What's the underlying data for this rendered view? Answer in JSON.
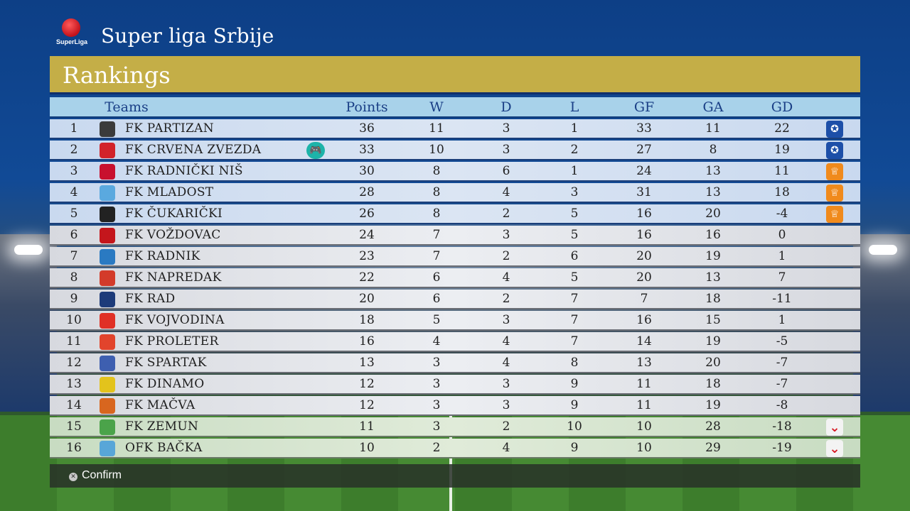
{
  "header": {
    "league_name": "Super liga Srbije",
    "logo_text": "SuperLiga"
  },
  "panel": {
    "title": "Rankings"
  },
  "columns": {
    "teams": "Teams",
    "points": "Points",
    "w": "W",
    "d": "D",
    "l": "L",
    "gf": "GF",
    "ga": "GA",
    "gd": "GD"
  },
  "rows": [
    {
      "pos": "1",
      "team": "FK PARTIZAN",
      "points": "36",
      "w": "11",
      "d": "3",
      "l": "1",
      "gf": "33",
      "ga": "11",
      "gd": "22",
      "badge": "champions-league-icon",
      "crest_color": "#3b3b3b"
    },
    {
      "pos": "2",
      "team": "FK CRVENA ZVEZDA",
      "points": "33",
      "w": "10",
      "d": "3",
      "l": "2",
      "gf": "27",
      "ga": "8",
      "gd": "19",
      "badge": "champions-league-icon",
      "crest_color": "#d2232a",
      "user_controlled": true
    },
    {
      "pos": "3",
      "team": "FK RADNIČKI NIŠ",
      "points": "30",
      "w": "8",
      "d": "6",
      "l": "1",
      "gf": "24",
      "ga": "13",
      "gd": "11",
      "badge": "europa-league-icon",
      "crest_color": "#c8102e"
    },
    {
      "pos": "4",
      "team": "FK MLADOST",
      "points": "28",
      "w": "8",
      "d": "4",
      "l": "3",
      "gf": "31",
      "ga": "13",
      "gd": "18",
      "badge": "europa-league-icon",
      "crest_color": "#5aa9df"
    },
    {
      "pos": "5",
      "team": "FK ČUKARIČKI",
      "points": "26",
      "w": "8",
      "d": "2",
      "l": "5",
      "gf": "16",
      "ga": "20",
      "gd": "-4",
      "badge": "europa-league-icon",
      "crest_color": "#222222"
    },
    {
      "pos": "6",
      "team": "FK VOŽDOVAC",
      "points": "24",
      "w": "7",
      "d": "3",
      "l": "5",
      "gf": "16",
      "ga": "16",
      "gd": "0",
      "badge": "",
      "crest_color": "#c4161c"
    },
    {
      "pos": "7",
      "team": "FK RADNIK",
      "points": "23",
      "w": "7",
      "d": "2",
      "l": "6",
      "gf": "20",
      "ga": "19",
      "gd": "1",
      "badge": "",
      "crest_color": "#2a7ac2"
    },
    {
      "pos": "8",
      "team": "FK NAPREDAK",
      "points": "22",
      "w": "6",
      "d": "4",
      "l": "5",
      "gf": "20",
      "ga": "13",
      "gd": "7",
      "badge": "",
      "crest_color": "#d33b2a"
    },
    {
      "pos": "9",
      "team": "FK RAD",
      "points": "20",
      "w": "6",
      "d": "2",
      "l": "7",
      "gf": "7",
      "ga": "18",
      "gd": "-11",
      "badge": "",
      "crest_color": "#1d3b7a"
    },
    {
      "pos": "10",
      "team": "FK VOJVODINA",
      "points": "18",
      "w": "5",
      "d": "3",
      "l": "7",
      "gf": "16",
      "ga": "15",
      "gd": "1",
      "badge": "",
      "crest_color": "#e03026"
    },
    {
      "pos": "11",
      "team": "FK PROLETER",
      "points": "16",
      "w": "4",
      "d": "4",
      "l": "7",
      "gf": "14",
      "ga": "19",
      "gd": "-5",
      "badge": "",
      "crest_color": "#e2442c"
    },
    {
      "pos": "12",
      "team": "FK SPARTAK",
      "points": "13",
      "w": "3",
      "d": "4",
      "l": "8",
      "gf": "13",
      "ga": "20",
      "gd": "-7",
      "badge": "",
      "crest_color": "#3e5fb0"
    },
    {
      "pos": "13",
      "team": "FK DINAMO",
      "points": "12",
      "w": "3",
      "d": "3",
      "l": "9",
      "gf": "11",
      "ga": "18",
      "gd": "-7",
      "badge": "",
      "crest_color": "#e3c31c"
    },
    {
      "pos": "14",
      "team": "FK MAČVA",
      "points": "12",
      "w": "3",
      "d": "3",
      "l": "9",
      "gf": "11",
      "ga": "19",
      "gd": "-8",
      "badge": "",
      "crest_color": "#d8661f"
    },
    {
      "pos": "15",
      "team": "FK ZEMUN",
      "points": "11",
      "w": "3",
      "d": "2",
      "l": "10",
      "gf": "10",
      "ga": "28",
      "gd": "-18",
      "badge": "relegation-icon",
      "crest_color": "#4ba34a"
    },
    {
      "pos": "16",
      "team": "OFK BAČKA",
      "points": "10",
      "w": "2",
      "d": "4",
      "l": "9",
      "gf": "10",
      "ga": "29",
      "gd": "-19",
      "badge": "relegation-icon",
      "crest_color": "#58a6d8"
    }
  ],
  "footer": {
    "confirm_label": "Confirm",
    "confirm_icon": "cross-button-icon"
  },
  "colors": {
    "header_bar": "#c4ae47",
    "column_header": "#a8d2ea",
    "text_dark": "#1f1f1f",
    "accent_blue": "#1a3f86"
  }
}
